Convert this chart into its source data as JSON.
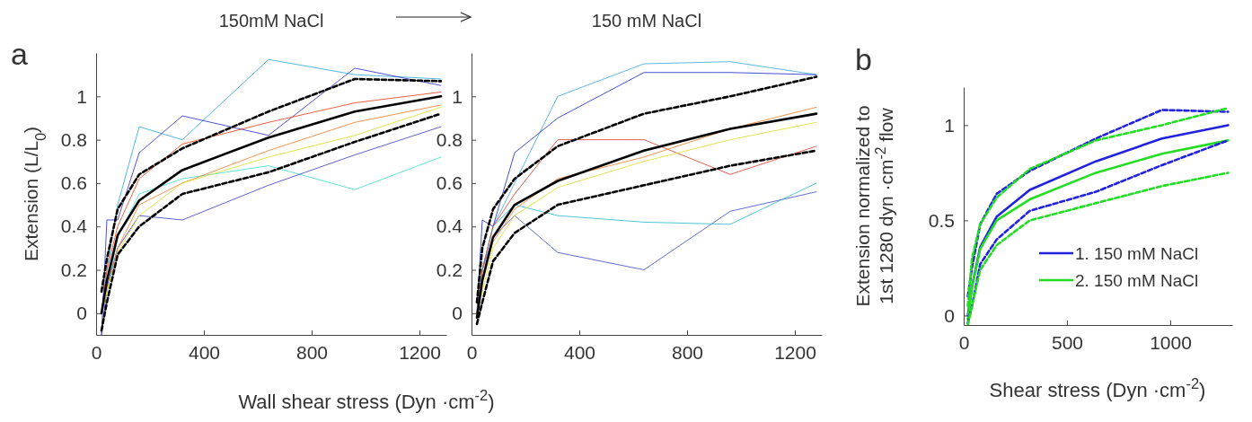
{
  "chart_data": [
    {
      "type": "line",
      "title": "150mM NaCl",
      "xlabel": "Wall shear stress (Dyn ·cm$^{-2}$)",
      "ylabel": "Extension (L/L$_{0}$)",
      "annotations": [
        "a"
      ],
      "x": [
        20,
        40,
        80,
        160,
        320,
        640,
        960,
        1280
      ],
      "xlim": [
        0,
        1300
      ],
      "xticks": [
        0,
        400,
        800,
        1200
      ],
      "ylim": [
        -0.1,
        1.2
      ],
      "yticks": [
        0,
        0.2,
        0.4,
        0.6,
        0.8,
        1
      ],
      "grid": false,
      "legend": false,
      "series": [
        {
          "color": "#33aadd",
          "values": [
            0.0,
            0.2,
            0.5,
            0.86,
            0.8,
            1.17,
            1.1,
            1.08
          ]
        },
        {
          "color": "#3333cc",
          "values": [
            -0.1,
            0.43,
            0.43,
            0.74,
            0.91,
            0.82,
            1.13,
            1.05
          ]
        },
        {
          "color": "#44ddcc",
          "values": [
            0.0,
            0.1,
            0.35,
            0.55,
            0.62,
            0.68,
            0.57,
            0.72
          ]
        },
        {
          "color": "#4444cc",
          "values": [
            -0.1,
            0.12,
            0.3,
            0.45,
            0.43,
            0.59,
            0.73,
            0.86
          ]
        },
        {
          "color": "#ee4422",
          "values": [
            0.0,
            0.2,
            0.4,
            0.62,
            0.78,
            0.88,
            0.97,
            1.02
          ]
        },
        {
          "color": "#f08030",
          "values": [
            0.0,
            0.1,
            0.3,
            0.5,
            0.6,
            0.75,
            0.88,
            0.96
          ]
        },
        {
          "color": "#dddd33",
          "values": [
            0.0,
            0.1,
            0.28,
            0.45,
            0.6,
            0.72,
            0.82,
            0.95
          ]
        },
        {
          "color": "#000000",
          "line_style": "solid",
          "values": [
            0.0,
            0.15,
            0.36,
            0.52,
            0.66,
            0.81,
            0.93,
            1.0
          ]
        },
        {
          "color": "#000000",
          "line_style": "dashed",
          "values": [
            0.1,
            0.25,
            0.48,
            0.64,
            0.76,
            0.93,
            1.08,
            1.07
          ]
        },
        {
          "color": "#000000",
          "line_style": "dashed",
          "values": [
            -0.08,
            0.05,
            0.27,
            0.4,
            0.55,
            0.65,
            0.79,
            0.92
          ]
        }
      ]
    },
    {
      "type": "line",
      "title": "150 mM NaCl",
      "x": [
        20,
        40,
        80,
        160,
        320,
        640,
        960,
        1280
      ],
      "xlim": [
        0,
        1300
      ],
      "xticks": [
        0,
        400,
        800,
        1200
      ],
      "ylim": [
        -0.1,
        1.2
      ],
      "yticks": [
        0,
        0.2,
        0.4,
        0.6,
        0.8,
        1
      ],
      "grid": false,
      "legend": false,
      "series": [
        {
          "color": "#44aadd",
          "values": [
            0.0,
            0.2,
            0.4,
            0.6,
            1.0,
            1.15,
            1.16,
            1.1
          ]
        },
        {
          "color": "#4455cc",
          "values": [
            0.0,
            0.2,
            0.35,
            0.45,
            0.28,
            0.2,
            0.47,
            0.56
          ]
        },
        {
          "color": "#2233cc",
          "values": [
            0.0,
            0.43,
            0.4,
            0.74,
            0.9,
            1.11,
            1.11,
            1.1
          ]
        },
        {
          "color": "#33bbcc",
          "values": [
            0.0,
            0.2,
            0.4,
            0.5,
            0.45,
            0.42,
            0.41,
            0.6
          ]
        },
        {
          "color": "#dd4433",
          "values": [
            0.0,
            0.2,
            0.4,
            0.55,
            0.8,
            0.8,
            0.64,
            0.77
          ]
        },
        {
          "color": "#f08030",
          "values": [
            0.0,
            0.15,
            0.33,
            0.48,
            0.62,
            0.72,
            0.85,
            0.95
          ]
        },
        {
          "color": "#dddd33",
          "values": [
            0.0,
            0.1,
            0.3,
            0.45,
            0.58,
            0.7,
            0.8,
            0.88
          ]
        },
        {
          "color": "#000000",
          "line_style": "solid",
          "values": [
            -0.02,
            0.15,
            0.35,
            0.5,
            0.61,
            0.75,
            0.85,
            0.92
          ]
        },
        {
          "color": "#000000",
          "line_style": "dashed",
          "values": [
            0.05,
            0.3,
            0.48,
            0.62,
            0.77,
            0.92,
            1.0,
            1.09
          ]
        },
        {
          "color": "#000000",
          "line_style": "dashed",
          "values": [
            -0.05,
            0.05,
            0.24,
            0.37,
            0.5,
            0.59,
            0.68,
            0.75
          ]
        }
      ]
    },
    {
      "type": "line",
      "xlabel": "Shear stress (Dyn ·cm$^{-2}$)",
      "ylabel": "Extension normalized to\n1st 1280 dyn ·cm$^{-2}$ flow",
      "annotations": [
        "b"
      ],
      "x": [
        20,
        40,
        80,
        160,
        320,
        640,
        960,
        1280
      ],
      "xlim": [
        0,
        1300
      ],
      "xticks": [
        0,
        500,
        1000
      ],
      "ylim": [
        -0.05,
        1.2
      ],
      "yticks": [
        0,
        0.5,
        1
      ],
      "grid": false,
      "legend": "bottom right",
      "series": [
        {
          "name": "1. 150 mM NaCl",
          "color": "#2222dd",
          "line_style": "solid",
          "values": [
            0.0,
            0.15,
            0.36,
            0.52,
            0.66,
            0.81,
            0.93,
            1.0
          ]
        },
        {
          "name": "2. 150 mM NaCl",
          "color": "#22dd22",
          "line_style": "solid",
          "values": [
            -0.02,
            0.15,
            0.35,
            0.5,
            0.61,
            0.75,
            0.85,
            0.92
          ]
        },
        {
          "color": "#2222dd",
          "line_style": "dashed",
          "values": [
            0.1,
            0.25,
            0.48,
            0.64,
            0.76,
            0.93,
            1.08,
            1.07
          ]
        },
        {
          "color": "#2222dd",
          "line_style": "dashed",
          "values": [
            -0.04,
            0.05,
            0.27,
            0.4,
            0.55,
            0.65,
            0.79,
            0.92
          ]
        },
        {
          "color": "#22dd22",
          "line_style": "dashed",
          "values": [
            0.05,
            0.3,
            0.48,
            0.62,
            0.77,
            0.92,
            1.0,
            1.09
          ]
        },
        {
          "color": "#22dd22",
          "line_style": "dashed",
          "values": [
            -0.05,
            0.05,
            0.24,
            0.37,
            0.5,
            0.59,
            0.68,
            0.75
          ]
        }
      ]
    }
  ]
}
